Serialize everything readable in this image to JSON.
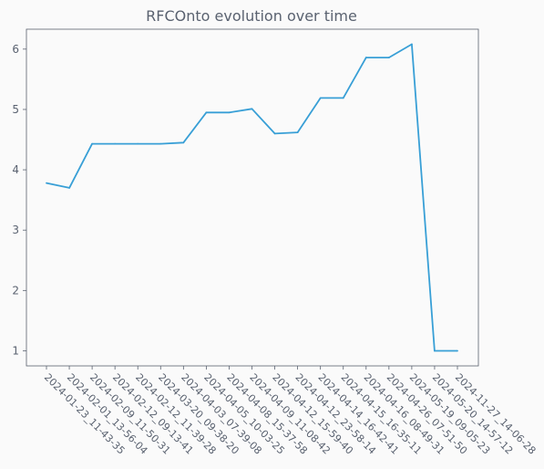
{
  "chart_data": {
    "type": "line",
    "title": "RFCOnto evolution over time",
    "xlabel": "",
    "ylabel": "",
    "categories": [
      "2024-01-23_11-43-35",
      "2024-02-01_13-56-04",
      "2024-02-09_11-50-31",
      "2024-02-12_09-13-41",
      "2024-02-12_11-39-28",
      "2024-03-20_09-38-20",
      "2024-04-03_07-39-08",
      "2024-04-05_10-03-25",
      "2024-04-08_15-37-58",
      "2024-04-09_11-08-42",
      "2024-04-12_15-59-40",
      "2024-04-12_23-58-14",
      "2024-04-14_16-42-41",
      "2024-04-15_16-35-11",
      "2024-04-16_08-49-31",
      "2024-04-26_07-51-50",
      "2024-05-19_09-05-23",
      "2024-05-20_14-57-12",
      "2024-11-27_14-06-28"
    ],
    "values": [
      3.78,
      3.7,
      4.43,
      4.43,
      4.43,
      4.43,
      4.45,
      4.95,
      4.95,
      5.01,
      4.6,
      4.62,
      5.19,
      5.19,
      5.86,
      5.86,
      6.08,
      1.0,
      1.0
    ],
    "yticks": [
      1,
      2,
      3,
      4,
      5,
      6
    ],
    "ylim": [
      0.75,
      6.33
    ],
    "grid": false,
    "legend": "none",
    "colors": {
      "line": "#389fd6",
      "axes": "#5a6270",
      "text": "#5a6270",
      "background": "#fafafa"
    }
  }
}
